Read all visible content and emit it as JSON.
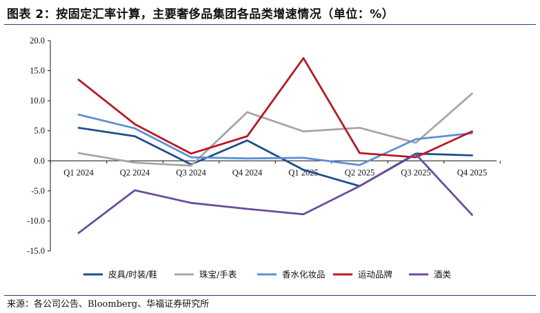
{
  "title": "图表 2：按固定汇率计算，主要奢侈品集团各品类增速情况（单位：%）",
  "source": "来源：各公司公告、Bloomberg、华福证券研究所",
  "chart_data": {
    "type": "line",
    "x": [
      "Q1 2024",
      "Q2 2024",
      "Q3 2024",
      "Q4 2024",
      "Q1 2025",
      "Q2 2025",
      "Q3 2025",
      "Q4 2025"
    ],
    "ylim": [
      -15,
      20
    ],
    "yticks": [
      "20.0",
      "15.0",
      "10.0",
      "5.0",
      "0.0",
      "-5.0",
      "-10.0",
      "-15.0"
    ],
    "ytick_values": [
      20,
      15,
      10,
      5,
      0,
      -5,
      -10,
      -15
    ],
    "grid": false,
    "legend_position": "bottom",
    "series": [
      {
        "name": "皮具/时装/鞋",
        "color": "#1f4e8c",
        "values": [
          5.5,
          4.1,
          -0.6,
          3.4,
          -1.5,
          -4.2,
          1.2,
          0.9
        ]
      },
      {
        "name": "珠宝/手表",
        "color": "#a6a6a6",
        "values": [
          1.3,
          -0.3,
          -0.8,
          8.1,
          4.9,
          5.5,
          3.0,
          11.2
        ]
      },
      {
        "name": "香水化妆品",
        "color": "#5b8fd6",
        "values": [
          7.7,
          5.4,
          0.6,
          0.4,
          0.5,
          -0.7,
          3.6,
          4.6
        ]
      },
      {
        "name": "运动品牌",
        "color": "#c0151f",
        "values": [
          13.5,
          6.1,
          1.2,
          4.1,
          17.1,
          1.3,
          0.6,
          4.9
        ]
      },
      {
        "name": "酒类",
        "color": "#6a4c9c",
        "values": [
          -12.0,
          -4.9,
          -7.0,
          -8.0,
          -8.9,
          -4.2,
          1.1,
          -9.0
        ]
      }
    ]
  }
}
